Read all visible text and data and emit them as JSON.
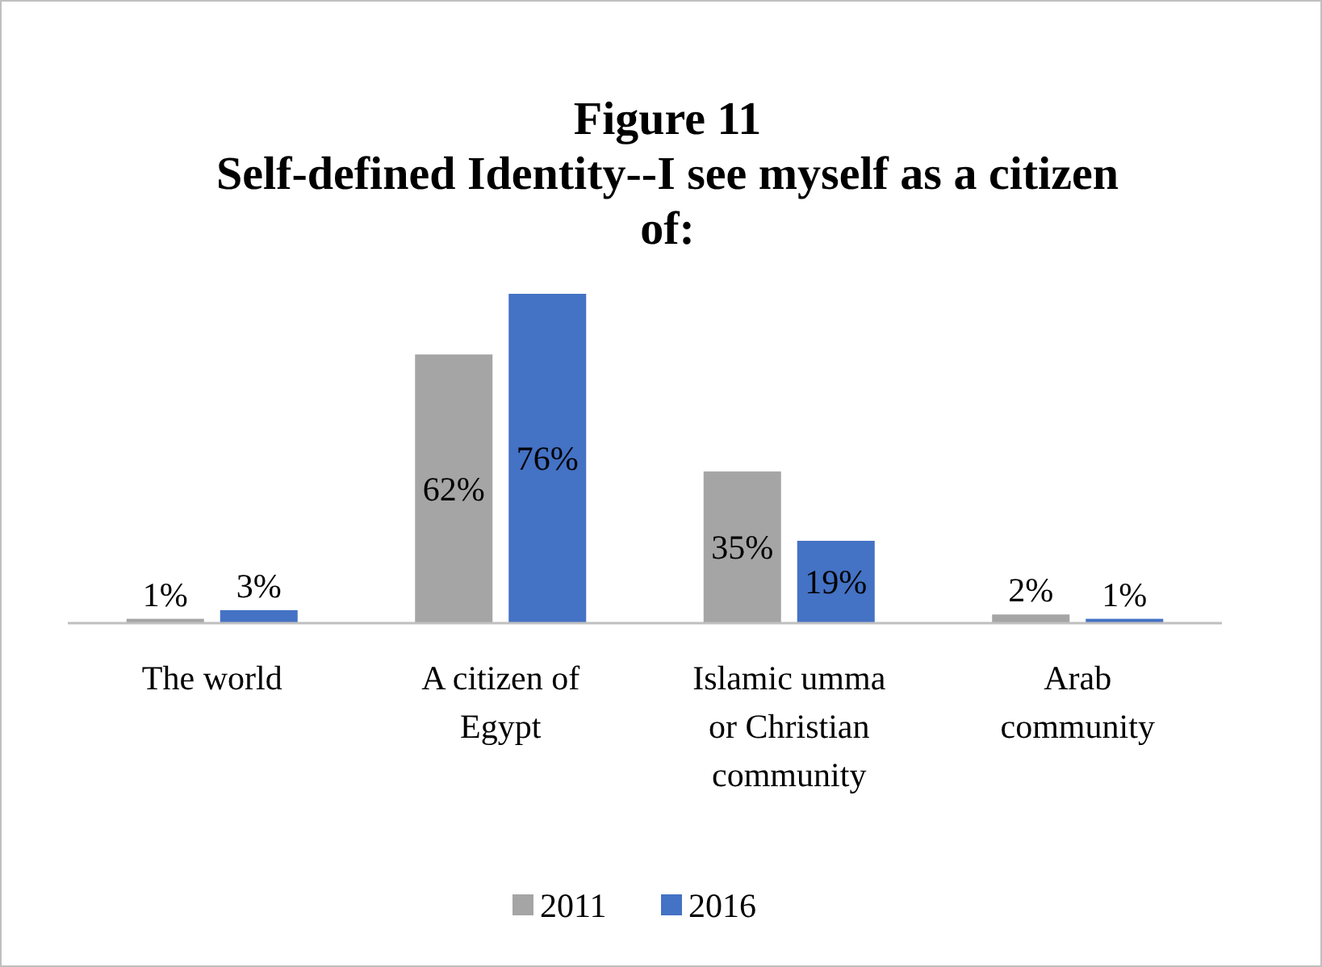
{
  "chart_data": {
    "type": "bar",
    "title": "Figure 11\nSelf-defined Identity--I see myself as a citizen of:",
    "categories": [
      "The world",
      "A citizen of Egypt",
      "Islamic umma or Christian community",
      "Arab community"
    ],
    "legend": "bottom",
    "series": [
      {
        "name": "2011",
        "color": "#a5a5a5",
        "values": [
          1,
          62,
          35,
          2
        ],
        "value_labels": [
          "1%",
          "62%",
          "35%",
          "2%"
        ]
      },
      {
        "name": "2016",
        "color": "#4472c4",
        "values": [
          3,
          76,
          19,
          1
        ],
        "value_labels": [
          "3%",
          "76%",
          "19%",
          "1%"
        ]
      }
    ]
  }
}
